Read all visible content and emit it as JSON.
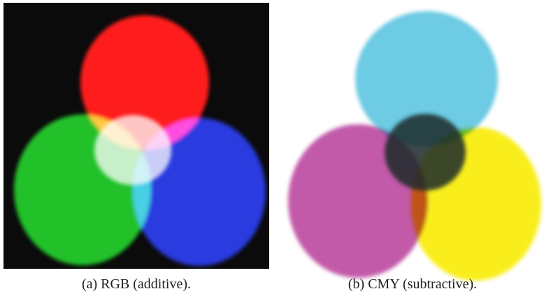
{
  "figures": [
    {
      "caption": "(a) RGB (additive)."
    },
    {
      "caption": "(b) CMY (subtractive)."
    }
  ]
}
